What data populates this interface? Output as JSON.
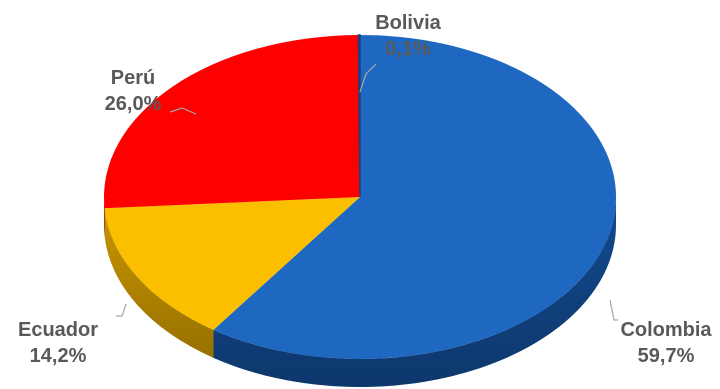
{
  "chart_data": {
    "type": "pie",
    "style": "3d",
    "slices": [
      {
        "label": "Colombia",
        "value": 59.7,
        "value_label": "59,7%",
        "color": "#1f68c1",
        "side_color": "#124a8f"
      },
      {
        "label": "Ecuador",
        "value": 14.2,
        "value_label": "14,2%",
        "color": "#fcbf00",
        "side_color": "#c99600"
      },
      {
        "label": "Perú",
        "value": 26.0,
        "value_label": "26,0%",
        "color": "#fe0000",
        "side_color": "#b00000"
      },
      {
        "label": "Bolivia",
        "value": 0.1,
        "value_label": "0,1%",
        "color": "#1f3f7a",
        "side_color": "#14284f"
      }
    ]
  }
}
